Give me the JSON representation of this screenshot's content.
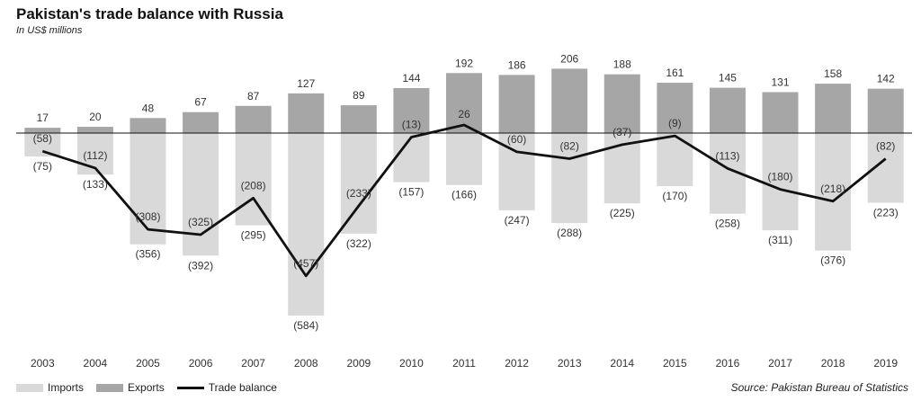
{
  "title": "Pakistan's trade balance with Russia",
  "subtitle": "In US$ millions",
  "source": "Source: Pakistan Bureau of Statistics",
  "legend": {
    "imports": "Imports",
    "exports": "Exports",
    "balance": "Trade balance"
  },
  "colors": {
    "imports": "#d9d9d9",
    "exports": "#a6a6a6",
    "balance": "#111111"
  },
  "chart_data": {
    "type": "bar",
    "categories": [
      "2003",
      "2004",
      "2005",
      "2006",
      "2007",
      "2008",
      "2009",
      "2010",
      "2011",
      "2012",
      "2013",
      "2014",
      "2015",
      "2016",
      "2017",
      "2018",
      "2019"
    ],
    "series": [
      {
        "name": "Exports",
        "type": "bar",
        "values": [
          17,
          20,
          48,
          67,
          87,
          127,
          89,
          144,
          192,
          186,
          206,
          188,
          161,
          145,
          131,
          158,
          142
        ],
        "labels": [
          "17",
          "20",
          "48",
          "67",
          "87",
          "127",
          "89",
          "144",
          "192",
          "186",
          "206",
          "188",
          "161",
          "145",
          "131",
          "158",
          "142"
        ]
      },
      {
        "name": "Imports",
        "type": "bar",
        "values": [
          -75,
          -133,
          -356,
          -392,
          -295,
          -584,
          -322,
          -157,
          -166,
          -247,
          -288,
          -225,
          -170,
          -258,
          -311,
          -376,
          -223
        ],
        "labels": [
          "(75)",
          "(133)",
          "(356)",
          "(392)",
          "(295)",
          "(584)",
          "(322)",
          "(157)",
          "(166)",
          "(247)",
          "(288)",
          "(225)",
          "(170)",
          "(258)",
          "(311)",
          "(376)",
          "(223)"
        ]
      },
      {
        "name": "Trade balance",
        "type": "line",
        "values": [
          -58,
          -112,
          -308,
          -325,
          -208,
          -457,
          -233,
          -13,
          26,
          -60,
          -82,
          -37,
          -9,
          -113,
          -180,
          -218,
          -82
        ],
        "labels": [
          "(58)",
          "(112)",
          "(308)",
          "(325)",
          "(208)",
          "(457)",
          "(233)",
          "(13)",
          "26",
          "(60)",
          "(82)",
          "(37)",
          "(9)",
          "(113)",
          "(180)",
          "(218)",
          "(82)"
        ]
      }
    ],
    "ylim": [
      -600,
      220
    ],
    "grid": false,
    "legend_position": "bottom-left"
  }
}
